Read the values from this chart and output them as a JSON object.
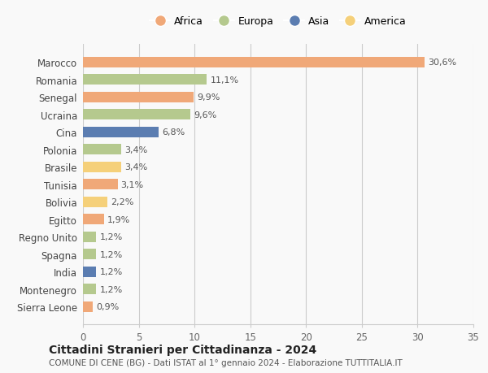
{
  "countries": [
    "Marocco",
    "Romania",
    "Senegal",
    "Ucraina",
    "Cina",
    "Polonia",
    "Brasile",
    "Tunisia",
    "Bolivia",
    "Egitto",
    "Regno Unito",
    "Spagna",
    "India",
    "Montenegro",
    "Sierra Leone"
  ],
  "values": [
    30.6,
    11.1,
    9.9,
    9.6,
    6.8,
    3.4,
    3.4,
    3.1,
    2.2,
    1.9,
    1.2,
    1.2,
    1.2,
    1.2,
    0.9
  ],
  "labels": [
    "30,6%",
    "11,1%",
    "9,9%",
    "9,6%",
    "6,8%",
    "3,4%",
    "3,4%",
    "3,1%",
    "2,2%",
    "1,9%",
    "1,2%",
    "1,2%",
    "1,2%",
    "1,2%",
    "0,9%"
  ],
  "continents": [
    "Africa",
    "Europa",
    "Africa",
    "Europa",
    "Asia",
    "Europa",
    "America",
    "Africa",
    "America",
    "Africa",
    "Europa",
    "Europa",
    "Asia",
    "Europa",
    "Africa"
  ],
  "colors": {
    "Africa": "#F0A878",
    "Europa": "#B5C98E",
    "Asia": "#5B7DB1",
    "America": "#F5D07A"
  },
  "legend_order": [
    "Africa",
    "Europa",
    "Asia",
    "America"
  ],
  "title": "Cittadini Stranieri per Cittadinanza - 2024",
  "subtitle": "COMUNE DI CENE (BG) - Dati ISTAT al 1° gennaio 2024 - Elaborazione TUTTITALIA.IT",
  "xlim": [
    0,
    35
  ],
  "xticks": [
    0,
    5,
    10,
    15,
    20,
    25,
    30,
    35
  ],
  "background_color": "#f9f9f9",
  "grid_color": "#cccccc",
  "bar_height": 0.6
}
